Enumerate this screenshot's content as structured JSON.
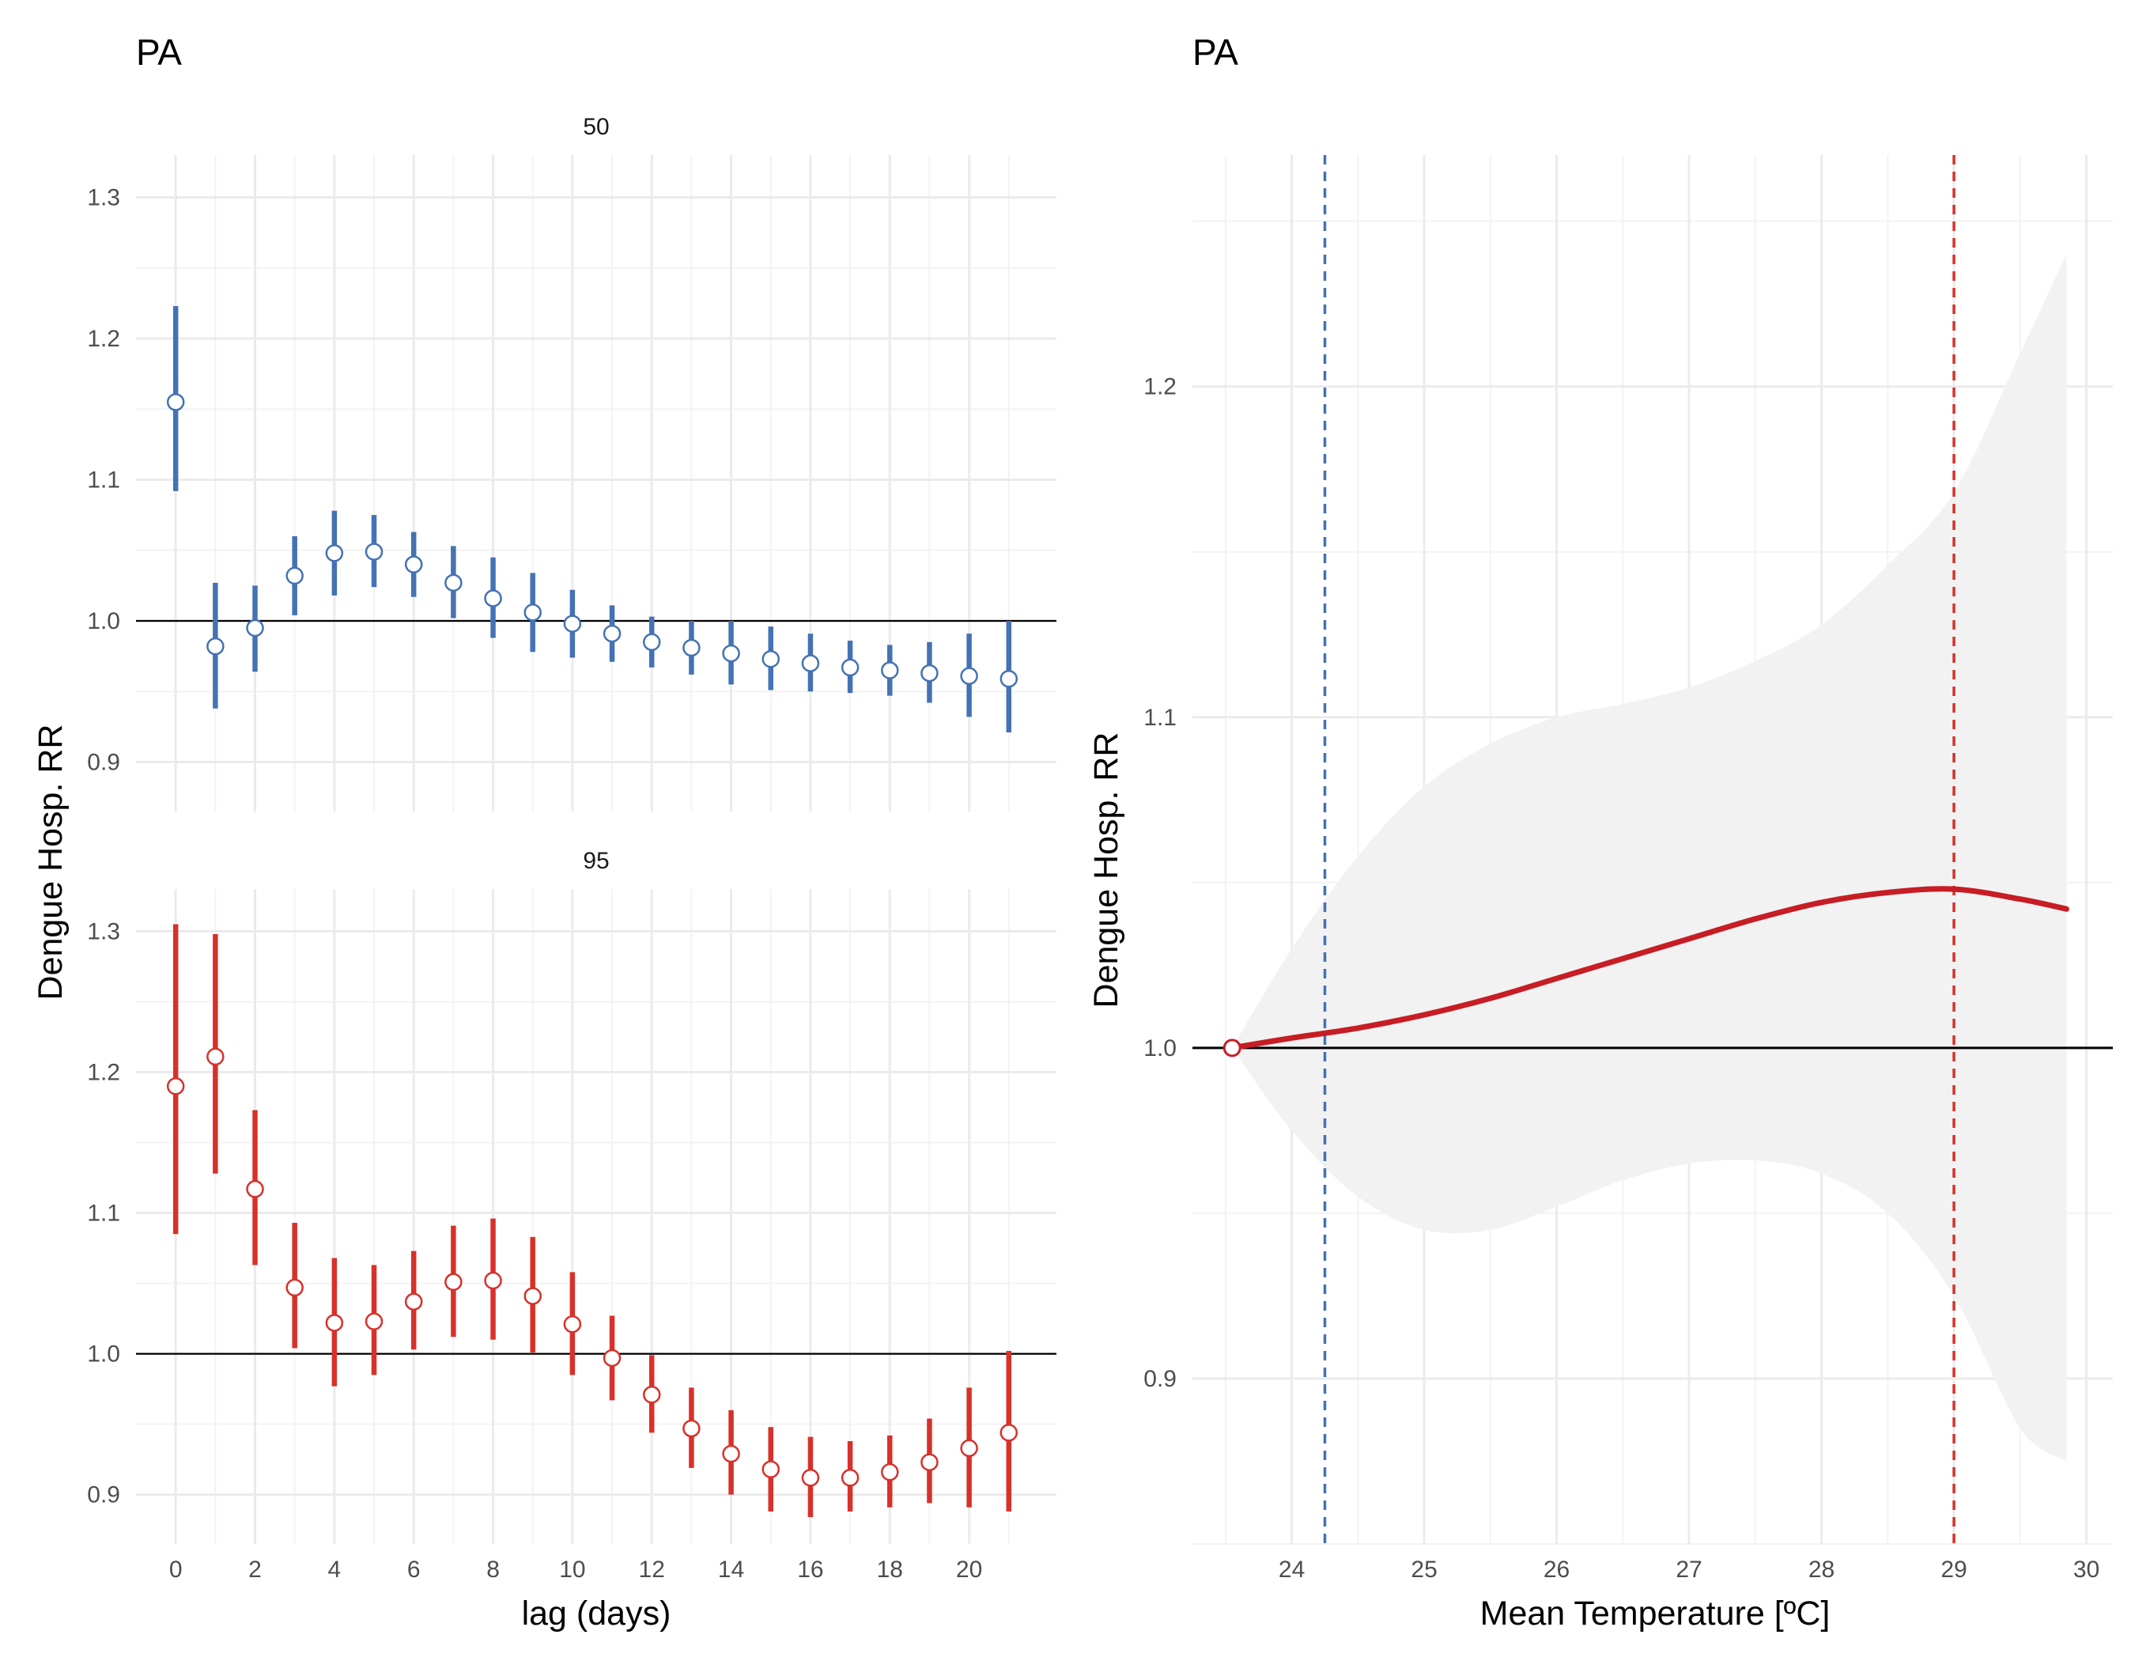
{
  "panels": [
    {
      "title": "PA",
      "ylabel": "Dengue Hosp. RR",
      "xlabel": "lag (days)",
      "chart_data": [
        {
          "type": "scatter",
          "facet": "50",
          "color": "#4472b4",
          "x": [
            0,
            1,
            2,
            3,
            4,
            5,
            6,
            7,
            8,
            9,
            10,
            11,
            12,
            13,
            14,
            15,
            16,
            17,
            18,
            19,
            20,
            21
          ],
          "y": [
            1.155,
            0.982,
            0.995,
            1.032,
            1.048,
            1.049,
            1.04,
            1.027,
            1.016,
            1.006,
            0.998,
            0.991,
            0.985,
            0.981,
            0.977,
            0.973,
            0.97,
            0.967,
            0.965,
            0.963,
            0.961,
            0.959
          ],
          "ymin": [
            1.092,
            0.938,
            0.964,
            1.004,
            1.018,
            1.024,
            1.017,
            1.002,
            0.988,
            0.978,
            0.974,
            0.971,
            0.967,
            0.962,
            0.955,
            0.951,
            0.95,
            0.949,
            0.947,
            0.942,
            0.932,
            0.921
          ],
          "ymax": [
            1.223,
            1.027,
            1.025,
            1.06,
            1.078,
            1.075,
            1.063,
            1.053,
            1.045,
            1.034,
            1.022,
            1.011,
            1.003,
            1.0,
            1.0,
            0.996,
            0.991,
            0.986,
            0.983,
            0.985,
            0.991,
            1.0
          ],
          "xticks": [
            0,
            2,
            4,
            6,
            8,
            10,
            12,
            14,
            16,
            18,
            20
          ],
          "yticks": [
            0.9,
            1.0,
            1.1,
            1.2,
            1.3
          ],
          "ytick_labels": [
            "0.9",
            "1.0",
            "1.1",
            "1.2",
            "1.3"
          ],
          "xlim": [
            -1,
            22.2
          ],
          "ylim": [
            0.865,
            1.33
          ],
          "reference_y": 1.0
        },
        {
          "type": "scatter",
          "facet": "95",
          "color": "#d7312a",
          "x": [
            0,
            1,
            2,
            3,
            4,
            5,
            6,
            7,
            8,
            9,
            10,
            11,
            12,
            13,
            14,
            15,
            16,
            17,
            18,
            19,
            20,
            21
          ],
          "y": [
            1.19,
            1.211,
            1.117,
            1.047,
            1.022,
            1.023,
            1.037,
            1.051,
            1.052,
            1.041,
            1.021,
            0.997,
            0.971,
            0.947,
            0.929,
            0.918,
            0.912,
            0.912,
            0.916,
            0.923,
            0.933,
            0.944
          ],
          "ymin": [
            1.085,
            1.128,
            1.063,
            1.004,
            0.977,
            0.985,
            1.003,
            1.012,
            1.01,
            1.001,
            0.985,
            0.967,
            0.944,
            0.919,
            0.9,
            0.888,
            0.884,
            0.888,
            0.891,
            0.894,
            0.891,
            0.888
          ],
          "ymax": [
            1.305,
            1.298,
            1.173,
            1.093,
            1.068,
            1.063,
            1.073,
            1.091,
            1.096,
            1.083,
            1.058,
            1.027,
            0.999,
            0.976,
            0.96,
            0.948,
            0.941,
            0.938,
            0.942,
            0.954,
            0.976,
            1.002
          ],
          "xticks": [
            0,
            2,
            4,
            6,
            8,
            10,
            12,
            14,
            16,
            18,
            20
          ],
          "yticks": [
            0.9,
            1.0,
            1.1,
            1.2,
            1.3
          ],
          "ytick_labels": [
            "0.9",
            "1.0",
            "1.1",
            "1.2",
            "1.3"
          ],
          "xlim": [
            -1,
            22.2
          ],
          "ylim": [
            0.865,
            1.33
          ],
          "reference_y": 1.0
        }
      ]
    },
    {
      "title": "PA",
      "ylabel": "Dengue Hosp. RR",
      "xlabel": "Mean Temperature [ºC]",
      "chart_data": {
        "type": "line",
        "line_color": "#c71d24",
        "band_color": "#f2f2f2",
        "x": [
          23.55,
          24.0,
          24.5,
          25.0,
          25.5,
          26.0,
          26.5,
          27.0,
          27.5,
          28.0,
          28.5,
          29.0,
          29.5,
          29.85
        ],
        "y": [
          1.0,
          1.003,
          1.006,
          1.01,
          1.015,
          1.021,
          1.027,
          1.033,
          1.039,
          1.044,
          1.047,
          1.048,
          1.045,
          1.042
        ],
        "ymin": [
          1.0,
          0.975,
          0.955,
          0.945,
          0.945,
          0.952,
          0.96,
          0.965,
          0.966,
          0.962,
          0.95,
          0.925,
          0.885,
          0.875
        ],
        "ymax": [
          1.0,
          1.03,
          1.058,
          1.079,
          1.092,
          1.1,
          1.104,
          1.109,
          1.117,
          1.128,
          1.146,
          1.168,
          1.21,
          1.24
        ],
        "xticks": [
          24,
          25,
          26,
          27,
          28,
          29,
          30
        ],
        "yticks": [
          0.9,
          1.0,
          1.1,
          1.2
        ],
        "ytick_labels": [
          "0.9",
          "1.0",
          "1.1",
          "1.2"
        ],
        "xlim": [
          23.25,
          30.2
        ],
        "ylim": [
          0.85,
          1.27
        ],
        "reference_y": 1.0,
        "reference_point": [
          23.55,
          1.0
        ],
        "vlines": [
          {
            "x": 24.25,
            "color": "#4472b4",
            "style": "dashed"
          },
          {
            "x": 29.0,
            "color": "#d7312a",
            "style": "dashed"
          }
        ]
      }
    }
  ]
}
